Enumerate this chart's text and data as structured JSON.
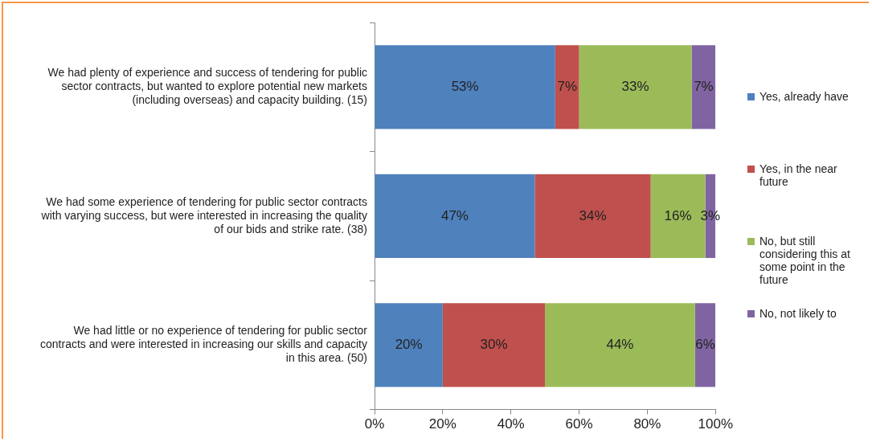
{
  "chart_data": {
    "type": "bar",
    "orientation": "horizontal",
    "stacked": true,
    "categories": [
      "We had plenty of experience and success of tendering for public sector contracts, but wanted to explore potential new markets (including overseas) and capacity building. (15)",
      "We had some experience of tendering for public sector contracts with varying success, but were interested in increasing the quality of our bids and strike rate. (38)",
      "We had little or no experience of tendering for public sector contracts and were interested in increasing our skills and capacity in this area. (50)"
    ],
    "series": [
      {
        "name": "Yes, already have",
        "color": "#4f81bd",
        "values": [
          53,
          47,
          20
        ],
        "value_labels": [
          "53%",
          "47%",
          "20%"
        ]
      },
      {
        "name": "Yes, in the near future",
        "color": "#c0504d",
        "values": [
          7,
          34,
          30
        ],
        "value_labels": [
          "7%",
          "34%",
          "30%"
        ]
      },
      {
        "name": "No, but still considering this at some point in the future",
        "color": "#9bbb59",
        "values": [
          33,
          16,
          44
        ],
        "value_labels": [
          "33%",
          "16%",
          "44%"
        ]
      },
      {
        "name": "No, not likely to",
        "color": "#8064a2",
        "values": [
          7,
          3,
          6
        ],
        "value_labels": [
          "7%",
          "3%",
          "6%"
        ]
      }
    ],
    "xlim": [
      0,
      100
    ],
    "xticks": [
      {
        "value": 0,
        "label": "0%"
      },
      {
        "value": 20,
        "label": "20%"
      },
      {
        "value": 40,
        "label": "40%"
      },
      {
        "value": 60,
        "label": "60%"
      },
      {
        "value": 80,
        "label": "80%"
      },
      {
        "value": 100,
        "label": "100%"
      }
    ],
    "grid": false,
    "legend": "right"
  }
}
